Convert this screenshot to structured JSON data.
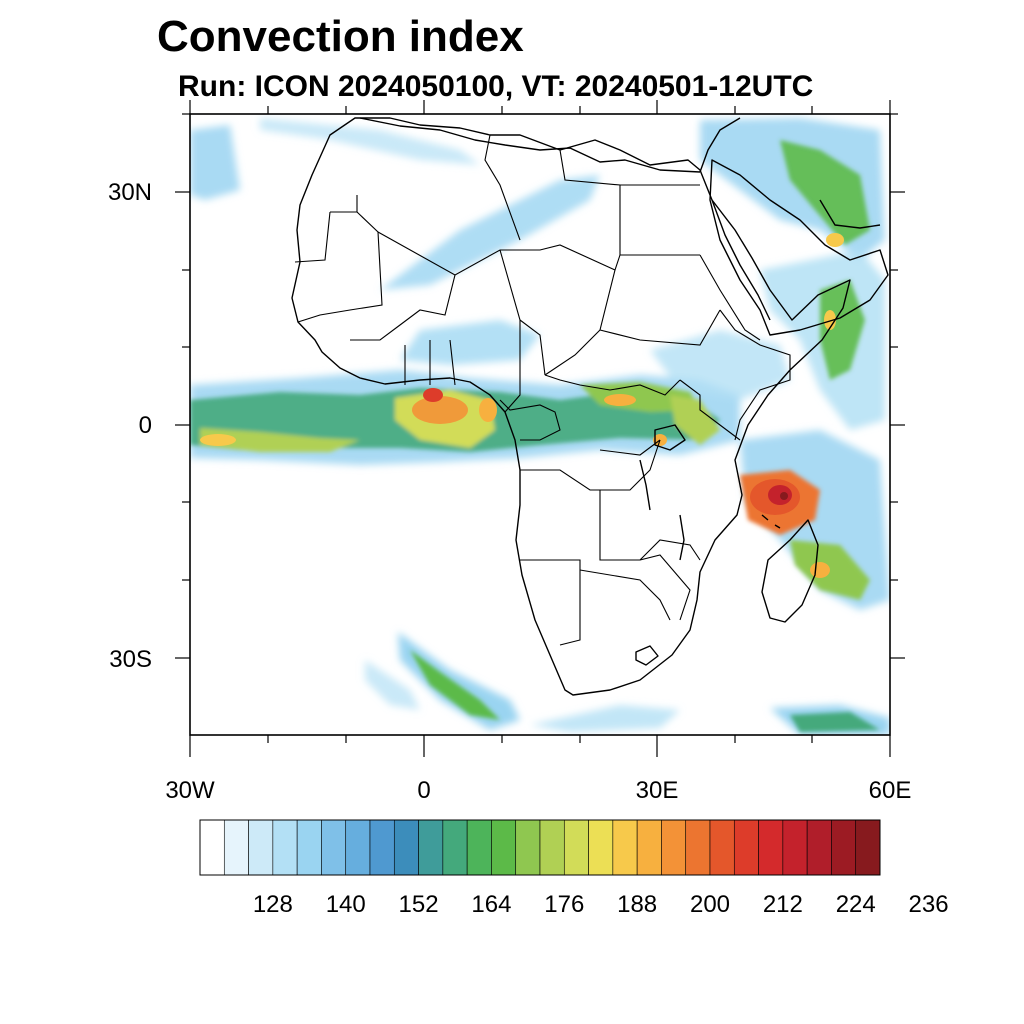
{
  "title": "Convection index",
  "subtitle": "Run: ICON 2024050100,  VT: 20240501-12UTC",
  "map": {
    "lon_range": [
      -30,
      60
    ],
    "lat_range": [
      -40,
      40
    ],
    "lat_labels": [
      {
        "lat": 30,
        "label": "30N"
      },
      {
        "lat": 0,
        "label": "0"
      },
      {
        "lat": -30,
        "label": "30S"
      }
    ],
    "lon_labels": [
      {
        "lon": -30,
        "label": "30W"
      },
      {
        "lon": 0,
        "label": "0"
      },
      {
        "lon": 30,
        "label": "30E"
      },
      {
        "lon": 60,
        "label": "60E"
      }
    ]
  },
  "colorbar": {
    "colors": [
      "#ffffff",
      "#e6f4fc",
      "#cdeaf8",
      "#b3e0f5",
      "#9ad4f1",
      "#7fc0e8",
      "#66aede",
      "#4f99d0",
      "#3c8dbb",
      "#3f9c9a",
      "#44a97c",
      "#4db45a",
      "#5cba48",
      "#8fc750",
      "#b0d054",
      "#d2dc58",
      "#ecdf55",
      "#f7c94b",
      "#f7b03f",
      "#f39237",
      "#ec7530",
      "#e4572b",
      "#dd3c2a",
      "#d42a2c",
      "#c4222c",
      "#b01e2a",
      "#9c1b23",
      "#871a1e"
    ],
    "labels": [
      "128",
      "140",
      "152",
      "164",
      "176",
      "188",
      "200",
      "212",
      "224",
      "236"
    ]
  },
  "features": {
    "coastline_color": "#000000"
  }
}
